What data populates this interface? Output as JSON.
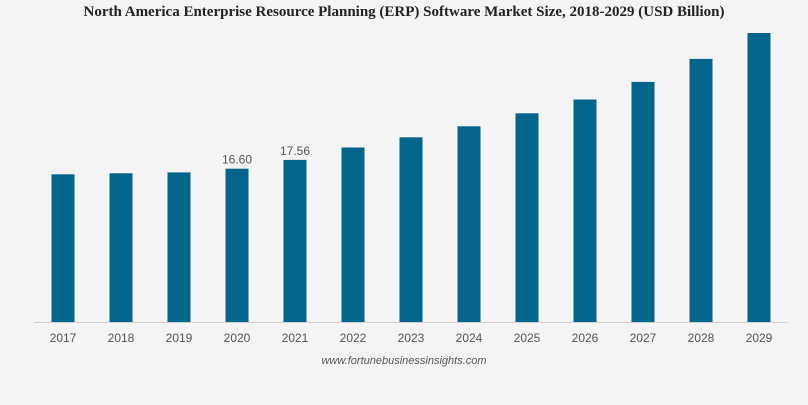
{
  "chart_data": {
    "type": "bar",
    "title": "North America Enterprise Resource Planning (ERP) Software Market Size, 2018-2029 (USD Billion)",
    "categories": [
      "2017",
      "2018",
      "2019",
      "2020",
      "2021",
      "2022",
      "2023",
      "2024",
      "2025",
      "2026",
      "2027",
      "2028",
      "2029"
    ],
    "values": [
      16.0,
      16.1,
      16.2,
      16.6,
      17.56,
      18.9,
      20.0,
      21.2,
      22.6,
      24.1,
      26.0,
      28.5,
      31.3
    ],
    "data_labels": [
      "",
      "",
      "",
      "16.60",
      "17.56",
      "",
      "",
      "",
      "",
      "",
      "",
      "",
      ""
    ],
    "bar_color": "#03658c",
    "ylim": [
      0,
      31.3
    ],
    "grid": false,
    "xlabel": "",
    "ylabel": ""
  },
  "source": "www.fortunebusinessinsights.com"
}
